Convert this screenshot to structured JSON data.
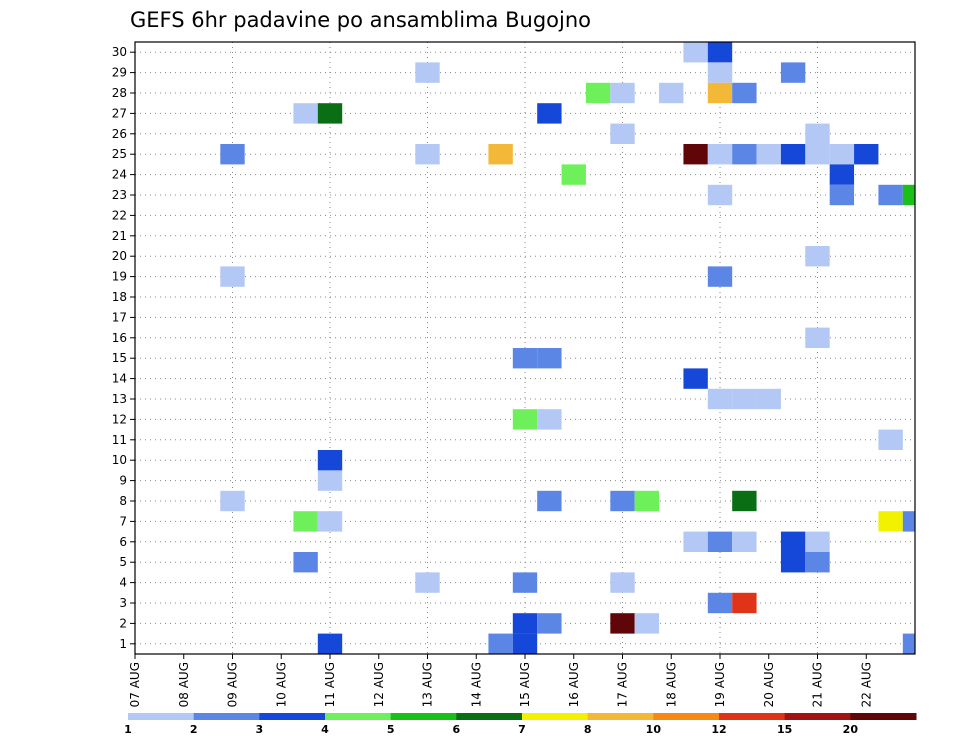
{
  "chart_data": {
    "type": "heatmap",
    "title": "GEFS 6hr padavine po ansamblima Bugojno",
    "xlabel": "",
    "ylabel": "",
    "x_tick_labels": [
      "07 AUG",
      "08 AUG",
      "09 AUG",
      "10 AUG",
      "11 AUG",
      "12 AUG",
      "13 AUG",
      "14 AUG",
      "15 AUG",
      "16 AUG",
      "17 AUG",
      "18 AUG",
      "19 AUG",
      "20 AUG",
      "21 AUG",
      "22 AUG"
    ],
    "y_tick_labels": [
      "1",
      "2",
      "3",
      "4",
      "5",
      "6",
      "7",
      "8",
      "9",
      "10",
      "11",
      "12",
      "13",
      "14",
      "15",
      "16",
      "17",
      "18",
      "19",
      "20",
      "21",
      "22",
      "23",
      "24",
      "25",
      "26",
      "27",
      "28",
      "29",
      "30"
    ],
    "x_unit": "day since 07 AUG (6-hour steps)",
    "y_unit": "ensemble member",
    "grid": true,
    "colorbar": {
      "labels": [
        "1",
        "2",
        "3",
        "4",
        "5",
        "6",
        "7",
        "8",
        "10",
        "12",
        "15",
        "20"
      ],
      "colors": [
        "#b3c8f5",
        "#5b86e6",
        "#1547d8",
        "#6ef05a",
        "#18c018",
        "#0a6e14",
        "#f2f200",
        "#f4b838",
        "#f48a14",
        "#e03418",
        "#a11212",
        "#600608"
      ]
    },
    "cells": [
      {
        "x": 5.75,
        "y": 30,
        "v": 1.5
      },
      {
        "x": 6.0,
        "y": 30,
        "v": 3.5
      },
      {
        "x": 3.0,
        "y": 29,
        "v": 1.5
      },
      {
        "x": 6.0,
        "y": 29,
        "v": 1.5
      },
      {
        "x": 6.75,
        "y": 29,
        "v": 2.5
      },
      {
        "x": 4.75,
        "y": 28,
        "v": 4.5
      },
      {
        "x": 5.0,
        "y": 28,
        "v": 1.5
      },
      {
        "x": 5.5,
        "y": 28,
        "v": 1.5
      },
      {
        "x": 6.0,
        "y": 28,
        "v": 9
      },
      {
        "x": 6.25,
        "y": 28,
        "v": 2.5
      },
      {
        "x": 1.75,
        "y": 27,
        "v": 1.5
      },
      {
        "x": 2.0,
        "y": 27,
        "v": 6.5
      },
      {
        "x": 4.25,
        "y": 27,
        "v": 3.5
      },
      {
        "x": 5.0,
        "y": 26,
        "v": 1.5
      },
      {
        "x": 7.0,
        "y": 26,
        "v": 1.5
      },
      {
        "x": 1.0,
        "y": 25,
        "v": 2.5
      },
      {
        "x": 3.0,
        "y": 25,
        "v": 1.5
      },
      {
        "x": 3.75,
        "y": 25,
        "v": 9
      },
      {
        "x": 5.75,
        "y": 25,
        "v": 22
      },
      {
        "x": 6.0,
        "y": 25,
        "v": 1.5
      },
      {
        "x": 6.25,
        "y": 25,
        "v": 2.5
      },
      {
        "x": 6.5,
        "y": 25,
        "v": 1.5
      },
      {
        "x": 6.75,
        "y": 25,
        "v": 3.5
      },
      {
        "x": 7.0,
        "y": 25,
        "v": 1.5
      },
      {
        "x": 7.25,
        "y": 25,
        "v": 1.5
      },
      {
        "x": 7.5,
        "y": 25,
        "v": 3.5
      },
      {
        "x": 4.5,
        "y": 24,
        "v": 4.5
      },
      {
        "x": 7.25,
        "y": 24,
        "v": 3.5
      },
      {
        "x": 6.0,
        "y": 23,
        "v": 1.5
      },
      {
        "x": 7.25,
        "y": 23,
        "v": 2.5
      },
      {
        "x": 7.75,
        "y": 23,
        "v": 2.5
      },
      {
        "x": 8.0,
        "y": 23,
        "v": 5.5
      },
      {
        "x": 7.0,
        "y": 20,
        "v": 1.5
      },
      {
        "x": 1.0,
        "y": 19,
        "v": 1.5
      },
      {
        "x": 6.0,
        "y": 19,
        "v": 2.5
      },
      {
        "x": 7.0,
        "y": 16,
        "v": 1.5
      },
      {
        "x": 4.0,
        "y": 15,
        "v": 2.5
      },
      {
        "x": 4.25,
        "y": 15,
        "v": 2.5
      },
      {
        "x": 5.75,
        "y": 14,
        "v": 3.5
      },
      {
        "x": 6.0,
        "y": 13,
        "v": 1.5
      },
      {
        "x": 6.25,
        "y": 13,
        "v": 1.5
      },
      {
        "x": 6.5,
        "y": 13,
        "v": 1.5
      },
      {
        "x": 4.0,
        "y": 12,
        "v": 4.5
      },
      {
        "x": 4.25,
        "y": 12,
        "v": 1.5
      },
      {
        "x": 7.75,
        "y": 11,
        "v": 1.5
      },
      {
        "x": 2.0,
        "y": 10,
        "v": 3.5
      },
      {
        "x": 2.0,
        "y": 9,
        "v": 1.5
      },
      {
        "x": 1.0,
        "y": 8,
        "v": 1.5
      },
      {
        "x": 4.25,
        "y": 8,
        "v": 2.5
      },
      {
        "x": 5.0,
        "y": 8,
        "v": 2.5
      },
      {
        "x": 5.25,
        "y": 8,
        "v": 4.5
      },
      {
        "x": 6.25,
        "y": 8,
        "v": 6.5
      },
      {
        "x": 1.75,
        "y": 7,
        "v": 4.5
      },
      {
        "x": 2.0,
        "y": 7,
        "v": 1.5
      },
      {
        "x": 7.75,
        "y": 7,
        "v": 7.5
      },
      {
        "x": 8.0,
        "y": 7,
        "v": 2.5
      },
      {
        "x": 5.75,
        "y": 6,
        "v": 1.5
      },
      {
        "x": 6.0,
        "y": 6,
        "v": 2.5
      },
      {
        "x": 6.25,
        "y": 6,
        "v": 1.5
      },
      {
        "x": 6.75,
        "y": 6,
        "v": 3.5
      },
      {
        "x": 7.0,
        "y": 6,
        "v": 1.5
      },
      {
        "x": 1.75,
        "y": 5,
        "v": 2.5
      },
      {
        "x": 6.75,
        "y": 5,
        "v": 3.5
      },
      {
        "x": 7.0,
        "y": 5,
        "v": 2.5
      },
      {
        "x": 3.0,
        "y": 4,
        "v": 1.5
      },
      {
        "x": 4.0,
        "y": 4,
        "v": 2.5
      },
      {
        "x": 5.0,
        "y": 4,
        "v": 1.5
      },
      {
        "x": 6.0,
        "y": 3,
        "v": 2.5
      },
      {
        "x": 6.25,
        "y": 3,
        "v": 13
      },
      {
        "x": 4.0,
        "y": 2,
        "v": 3.5
      },
      {
        "x": 4.25,
        "y": 2,
        "v": 2.5
      },
      {
        "x": 5.0,
        "y": 2,
        "v": 22
      },
      {
        "x": 5.25,
        "y": 2,
        "v": 1.5
      },
      {
        "x": 2.0,
        "y": 1,
        "v": 3.5
      },
      {
        "x": 3.75,
        "y": 1,
        "v": 2.5
      },
      {
        "x": 4.0,
        "y": 1,
        "v": 3.5
      },
      {
        "x": 8.0,
        "y": 1,
        "v": 2.5
      }
    ]
  }
}
